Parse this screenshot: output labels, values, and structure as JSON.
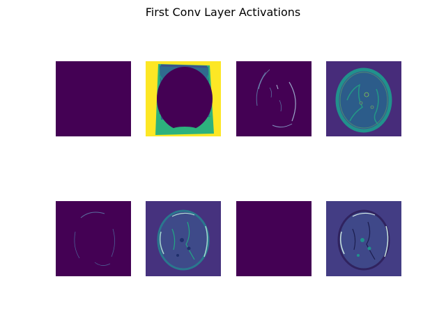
{
  "figure": {
    "title": "First Conv Layer Activations"
  },
  "colormap": {
    "name": "viridis",
    "low": "#440154",
    "low_mid": "#3b528b",
    "mid": "#21918c",
    "high_mid": "#5ec962",
    "high": "#fde725"
  },
  "panels": [
    {
      "index": 0,
      "row": 1,
      "col": 1,
      "content": "empty-activation"
    },
    {
      "index": 1,
      "row": 1,
      "col": 2,
      "content": "inverted-mask"
    },
    {
      "index": 2,
      "row": 1,
      "col": 3,
      "content": "faint-edges"
    },
    {
      "index": 3,
      "row": 1,
      "col": 4,
      "content": "brain-mri-bright"
    },
    {
      "index": 4,
      "row": 2,
      "col": 1,
      "content": "faint-edges-dim"
    },
    {
      "index": 5,
      "row": 2,
      "col": 2,
      "content": "brain-mri-edges"
    },
    {
      "index": 6,
      "row": 2,
      "col": 3,
      "content": "empty-activation"
    },
    {
      "index": 7,
      "row": 2,
      "col": 4,
      "content": "brain-mri-edges-alt"
    }
  ]
}
